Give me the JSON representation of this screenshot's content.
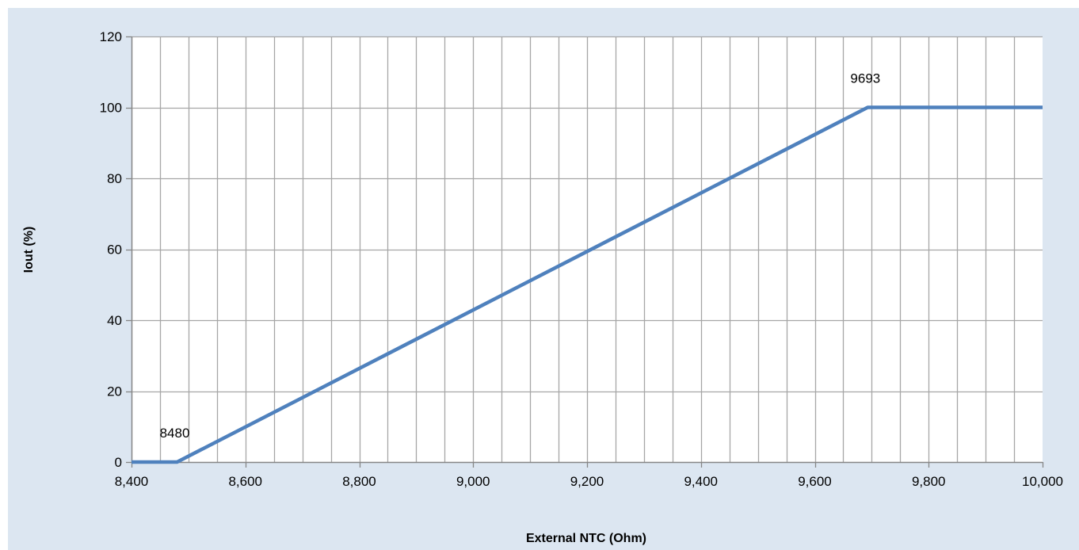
{
  "chart_data": {
    "type": "line",
    "title": "",
    "xlabel": "External NTC (Ohm)",
    "ylabel": "Iout (%)",
    "xlim": [
      8400,
      10000
    ],
    "ylim": [
      0,
      120
    ],
    "x_ticks": [
      8400,
      8600,
      8800,
      9000,
      9200,
      9400,
      9600,
      9800,
      10000
    ],
    "x_tick_labels": [
      "8,400",
      "8,600",
      "8,800",
      "9,000",
      "9,200",
      "9,400",
      "9,600",
      "9,800",
      "10,000"
    ],
    "y_ticks": [
      0,
      20,
      40,
      60,
      80,
      100,
      120
    ],
    "y_tick_labels": [
      "0",
      "20",
      "40",
      "60",
      "80",
      "100",
      "120"
    ],
    "x_minor_step": 50,
    "grid": true,
    "legend": "none",
    "series": [
      {
        "color": "#4f81bd",
        "x": [
          8400,
          8480,
          9693,
          10000
        ],
        "y": [
          0,
          0,
          100,
          100
        ]
      }
    ],
    "annotations": [
      {
        "text": "8480",
        "x": 8480,
        "y": 0
      },
      {
        "text": "9693",
        "x": 9693,
        "y": 100
      }
    ]
  },
  "colors": {
    "background": "#dce6f1",
    "plot_area": "#ffffff",
    "grid": "#a6a6a6",
    "axis": "#868686",
    "series": "#4f81bd"
  }
}
